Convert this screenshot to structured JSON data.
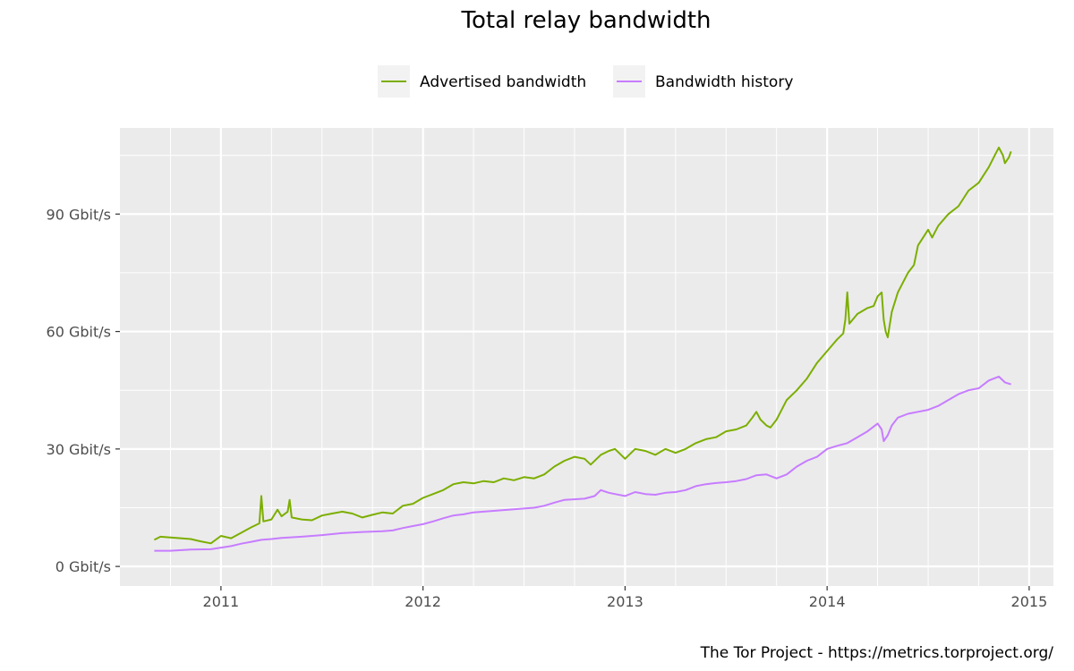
{
  "chart_data": {
    "type": "line",
    "title": "Total relay bandwidth",
    "xlabel": "",
    "ylabel": "",
    "caption": "The Tor Project - https://metrics.torproject.org/",
    "legend_position": "top",
    "grid": true,
    "xlim": [
      2010.5,
      2015.12
    ],
    "ylim": [
      -5,
      112
    ],
    "x_ticks": [
      {
        "value": 2011,
        "label": "2011"
      },
      {
        "value": 2012,
        "label": "2012"
      },
      {
        "value": 2013,
        "label": "2013"
      },
      {
        "value": 2014,
        "label": "2014"
      },
      {
        "value": 2015,
        "label": "2015"
      }
    ],
    "y_ticks": [
      {
        "value": 0,
        "label": "0 Gbit/s"
      },
      {
        "value": 30,
        "label": "30 Gbit/s"
      },
      {
        "value": 60,
        "label": "60 Gbit/s"
      },
      {
        "value": 90,
        "label": "90 Gbit/s"
      }
    ],
    "series": [
      {
        "name": "Advertised bandwidth",
        "color": "#7cae00",
        "points": [
          [
            2010.67,
            6.8
          ],
          [
            2010.7,
            7.6
          ],
          [
            2010.75,
            7.4
          ],
          [
            2010.8,
            7.2
          ],
          [
            2010.85,
            7.0
          ],
          [
            2010.9,
            6.4
          ],
          [
            2010.95,
            5.9
          ],
          [
            2011.0,
            7.8
          ],
          [
            2011.05,
            7.2
          ],
          [
            2011.1,
            8.6
          ],
          [
            2011.15,
            10.0
          ],
          [
            2011.19,
            11.0
          ],
          [
            2011.2,
            18.0
          ],
          [
            2011.21,
            11.5
          ],
          [
            2011.25,
            12.0
          ],
          [
            2011.28,
            14.5
          ],
          [
            2011.3,
            12.8
          ],
          [
            2011.33,
            14.0
          ],
          [
            2011.34,
            17.0
          ],
          [
            2011.35,
            12.5
          ],
          [
            2011.4,
            12.0
          ],
          [
            2011.45,
            11.8
          ],
          [
            2011.5,
            13.0
          ],
          [
            2011.55,
            13.5
          ],
          [
            2011.6,
            14.0
          ],
          [
            2011.65,
            13.5
          ],
          [
            2011.7,
            12.5
          ],
          [
            2011.75,
            13.2
          ],
          [
            2011.8,
            13.8
          ],
          [
            2011.85,
            13.5
          ],
          [
            2011.9,
            15.5
          ],
          [
            2011.95,
            16.0
          ],
          [
            2012.0,
            17.5
          ],
          [
            2012.05,
            18.5
          ],
          [
            2012.1,
            19.5
          ],
          [
            2012.15,
            21.0
          ],
          [
            2012.2,
            21.5
          ],
          [
            2012.25,
            21.2
          ],
          [
            2012.3,
            21.8
          ],
          [
            2012.35,
            21.5
          ],
          [
            2012.4,
            22.5
          ],
          [
            2012.45,
            22.0
          ],
          [
            2012.5,
            22.8
          ],
          [
            2012.55,
            22.5
          ],
          [
            2012.6,
            23.5
          ],
          [
            2012.65,
            25.5
          ],
          [
            2012.7,
            27.0
          ],
          [
            2012.75,
            28.0
          ],
          [
            2012.8,
            27.5
          ],
          [
            2012.83,
            26.0
          ],
          [
            2012.88,
            28.5
          ],
          [
            2012.92,
            29.5
          ],
          [
            2012.95,
            30.0
          ],
          [
            2013.0,
            27.5
          ],
          [
            2013.03,
            29.0
          ],
          [
            2013.05,
            30.0
          ],
          [
            2013.1,
            29.5
          ],
          [
            2013.15,
            28.5
          ],
          [
            2013.2,
            30.0
          ],
          [
            2013.25,
            29.0
          ],
          [
            2013.3,
            30.0
          ],
          [
            2013.35,
            31.5
          ],
          [
            2013.4,
            32.5
          ],
          [
            2013.45,
            33.0
          ],
          [
            2013.5,
            34.5
          ],
          [
            2013.55,
            35.0
          ],
          [
            2013.6,
            36.0
          ],
          [
            2013.63,
            38.0
          ],
          [
            2013.65,
            39.5
          ],
          [
            2013.67,
            37.5
          ],
          [
            2013.7,
            36.0
          ],
          [
            2013.72,
            35.5
          ],
          [
            2013.75,
            37.5
          ],
          [
            2013.77,
            39.5
          ],
          [
            2013.8,
            42.5
          ],
          [
            2013.85,
            45.0
          ],
          [
            2013.9,
            48.0
          ],
          [
            2013.95,
            52.0
          ],
          [
            2014.0,
            55.0
          ],
          [
            2014.05,
            58.0
          ],
          [
            2014.08,
            59.5
          ],
          [
            2014.09,
            63.0
          ],
          [
            2014.1,
            70.0
          ],
          [
            2014.11,
            62.0
          ],
          [
            2014.15,
            64.5
          ],
          [
            2014.2,
            66.0
          ],
          [
            2014.23,
            66.5
          ],
          [
            2014.25,
            69.0
          ],
          [
            2014.27,
            70.0
          ],
          [
            2014.28,
            63.0
          ],
          [
            2014.29,
            60.0
          ],
          [
            2014.3,
            58.5
          ],
          [
            2014.32,
            65.0
          ],
          [
            2014.35,
            70.0
          ],
          [
            2014.4,
            75.0
          ],
          [
            2014.43,
            77.0
          ],
          [
            2014.45,
            82.0
          ],
          [
            2014.5,
            86.0
          ],
          [
            2014.52,
            84.0
          ],
          [
            2014.55,
            87.0
          ],
          [
            2014.6,
            90.0
          ],
          [
            2014.65,
            92.0
          ],
          [
            2014.7,
            96.0
          ],
          [
            2014.75,
            98.0
          ],
          [
            2014.8,
            102.0
          ],
          [
            2014.83,
            105.0
          ],
          [
            2014.85,
            107.0
          ],
          [
            2014.87,
            105.0
          ],
          [
            2014.88,
            103.0
          ],
          [
            2014.9,
            104.5
          ],
          [
            2014.91,
            106.0
          ]
        ]
      },
      {
        "name": "Bandwidth history",
        "color": "#c77cff",
        "points": [
          [
            2010.67,
            4.0
          ],
          [
            2010.75,
            4.0
          ],
          [
            2010.85,
            4.3
          ],
          [
            2010.95,
            4.4
          ],
          [
            2011.0,
            4.8
          ],
          [
            2011.05,
            5.2
          ],
          [
            2011.1,
            5.8
          ],
          [
            2011.15,
            6.3
          ],
          [
            2011.2,
            6.8
          ],
          [
            2011.25,
            7.0
          ],
          [
            2011.3,
            7.3
          ],
          [
            2011.4,
            7.6
          ],
          [
            2011.5,
            8.0
          ],
          [
            2011.6,
            8.5
          ],
          [
            2011.7,
            8.8
          ],
          [
            2011.8,
            9.0
          ],
          [
            2011.85,
            9.2
          ],
          [
            2011.9,
            9.8
          ],
          [
            2011.95,
            10.3
          ],
          [
            2012.0,
            10.8
          ],
          [
            2012.05,
            11.5
          ],
          [
            2012.1,
            12.3
          ],
          [
            2012.15,
            13.0
          ],
          [
            2012.2,
            13.3
          ],
          [
            2012.25,
            13.8
          ],
          [
            2012.3,
            14.0
          ],
          [
            2012.4,
            14.4
          ],
          [
            2012.5,
            14.8
          ],
          [
            2012.55,
            15.0
          ],
          [
            2012.6,
            15.5
          ],
          [
            2012.65,
            16.3
          ],
          [
            2012.7,
            17.0
          ],
          [
            2012.8,
            17.3
          ],
          [
            2012.85,
            18.0
          ],
          [
            2012.88,
            19.5
          ],
          [
            2012.92,
            18.8
          ],
          [
            2012.95,
            18.5
          ],
          [
            2013.0,
            18.0
          ],
          [
            2013.05,
            19.0
          ],
          [
            2013.1,
            18.5
          ],
          [
            2013.15,
            18.3
          ],
          [
            2013.2,
            18.8
          ],
          [
            2013.25,
            19.0
          ],
          [
            2013.3,
            19.5
          ],
          [
            2013.35,
            20.5
          ],
          [
            2013.4,
            21.0
          ],
          [
            2013.45,
            21.3
          ],
          [
            2013.5,
            21.5
          ],
          [
            2013.55,
            21.8
          ],
          [
            2013.6,
            22.3
          ],
          [
            2013.65,
            23.3
          ],
          [
            2013.7,
            23.5
          ],
          [
            2013.75,
            22.5
          ],
          [
            2013.8,
            23.5
          ],
          [
            2013.85,
            25.5
          ],
          [
            2013.9,
            27.0
          ],
          [
            2013.95,
            28.0
          ],
          [
            2014.0,
            30.0
          ],
          [
            2014.05,
            30.8
          ],
          [
            2014.1,
            31.5
          ],
          [
            2014.15,
            33.0
          ],
          [
            2014.2,
            34.5
          ],
          [
            2014.25,
            36.5
          ],
          [
            2014.27,
            35.0
          ],
          [
            2014.28,
            32.0
          ],
          [
            2014.3,
            33.5
          ],
          [
            2014.32,
            36.0
          ],
          [
            2014.35,
            38.0
          ],
          [
            2014.4,
            39.0
          ],
          [
            2014.45,
            39.5
          ],
          [
            2014.5,
            40.0
          ],
          [
            2014.55,
            41.0
          ],
          [
            2014.6,
            42.5
          ],
          [
            2014.65,
            44.0
          ],
          [
            2014.7,
            45.0
          ],
          [
            2014.75,
            45.5
          ],
          [
            2014.8,
            47.5
          ],
          [
            2014.85,
            48.5
          ],
          [
            2014.88,
            47.0
          ],
          [
            2014.91,
            46.5
          ]
        ]
      }
    ]
  }
}
